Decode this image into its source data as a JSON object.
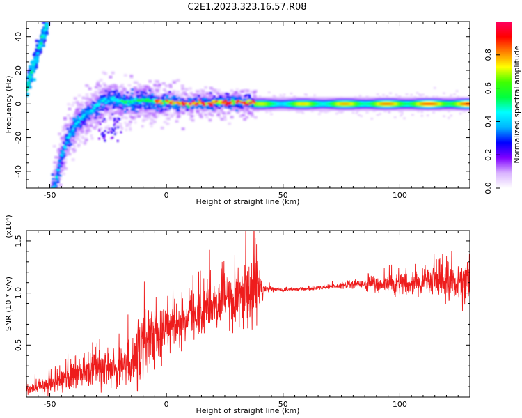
{
  "figure_title": "C2E1.2023.323.16.57.R08",
  "chart_data": [
    {
      "type": "heatmap",
      "title": "",
      "xlabel": "Height of straight line (km)",
      "ylabel": "Frequency (Hz)",
      "xlim": [
        -60,
        130
      ],
      "ylim": [
        -50,
        49
      ],
      "xticks": [
        -50,
        0,
        50,
        100
      ],
      "yticks": [
        -40,
        -20,
        0,
        20,
        40
      ],
      "colorbar": {
        "label": "Normalized spectral amplitude",
        "range": [
          0,
          1
        ],
        "ticks": [
          "0.0",
          "0.2",
          "0.4",
          "0.6",
          "0.8"
        ],
        "colormap": [
          "#ffffff",
          "#d9b3ff",
          "#8000ff",
          "#0000ff",
          "#00b4ff",
          "#00ffff",
          "#00ff40",
          "#40ff00",
          "#ffff00",
          "#ff8000",
          "#ff0000",
          "#ff0060"
        ]
      },
      "ridges": [
        {
          "name": "descending",
          "points": [
            [
              -60,
              8
            ],
            [
              -57,
              22
            ],
            [
              -54,
              36
            ],
            [
              -51,
              48
            ]
          ]
        },
        {
          "name": "main",
          "points": [
            [
              -48,
              -50
            ],
            [
              -45,
              -30
            ],
            [
              -42,
              -20
            ],
            [
              -38,
              -10
            ],
            [
              -32,
              -4
            ],
            [
              -27,
              2
            ],
            [
              -23,
              3
            ],
            [
              -18,
              1
            ],
            [
              -10,
              2
            ],
            [
              0,
              1
            ],
            [
              10,
              0
            ],
            [
              20,
              1
            ],
            [
              38,
              1
            ],
            [
              60,
              0
            ],
            [
              90,
              0
            ],
            [
              130,
              0
            ]
          ]
        }
      ]
    },
    {
      "type": "line",
      "title": "",
      "xlabel": "Height of straight line (km)",
      "ylabel": "SNR (10 * v/v)",
      "y_multiplier_label": "(x10⁴)",
      "xlim": [
        -60,
        130
      ],
      "ylim": [
        0,
        1.6
      ],
      "xticks": [
        -50,
        0,
        50,
        100
      ],
      "yticks": [
        0.5,
        1.0,
        1.5
      ],
      "series_color": "#ee1c1c",
      "envelope_x": [
        -60,
        -50,
        -40,
        -30,
        -20,
        -15,
        -12,
        -10,
        -5,
        0,
        5,
        10,
        15,
        20,
        25,
        30,
        35,
        38,
        39,
        42,
        50,
        60,
        70,
        80,
        90,
        100,
        110,
        120,
        130
      ],
      "envelope_mean": [
        0.07,
        0.12,
        0.22,
        0.27,
        0.3,
        0.33,
        0.38,
        0.48,
        0.58,
        0.66,
        0.7,
        0.76,
        0.85,
        0.9,
        0.93,
        0.97,
        1.0,
        1.04,
        1.05,
        1.04,
        1.03,
        1.04,
        1.06,
        1.08,
        1.08,
        1.09,
        1.1,
        1.1,
        1.12
      ],
      "envelope_amplitude": [
        0.05,
        0.08,
        0.13,
        0.16,
        0.18,
        0.22,
        0.28,
        0.36,
        0.24,
        0.2,
        0.2,
        0.2,
        0.22,
        0.22,
        0.24,
        0.25,
        0.3,
        0.35,
        0.25,
        0.03,
        0.015,
        0.015,
        0.02,
        0.03,
        0.06,
        0.09,
        0.12,
        0.15,
        0.18
      ]
    }
  ]
}
